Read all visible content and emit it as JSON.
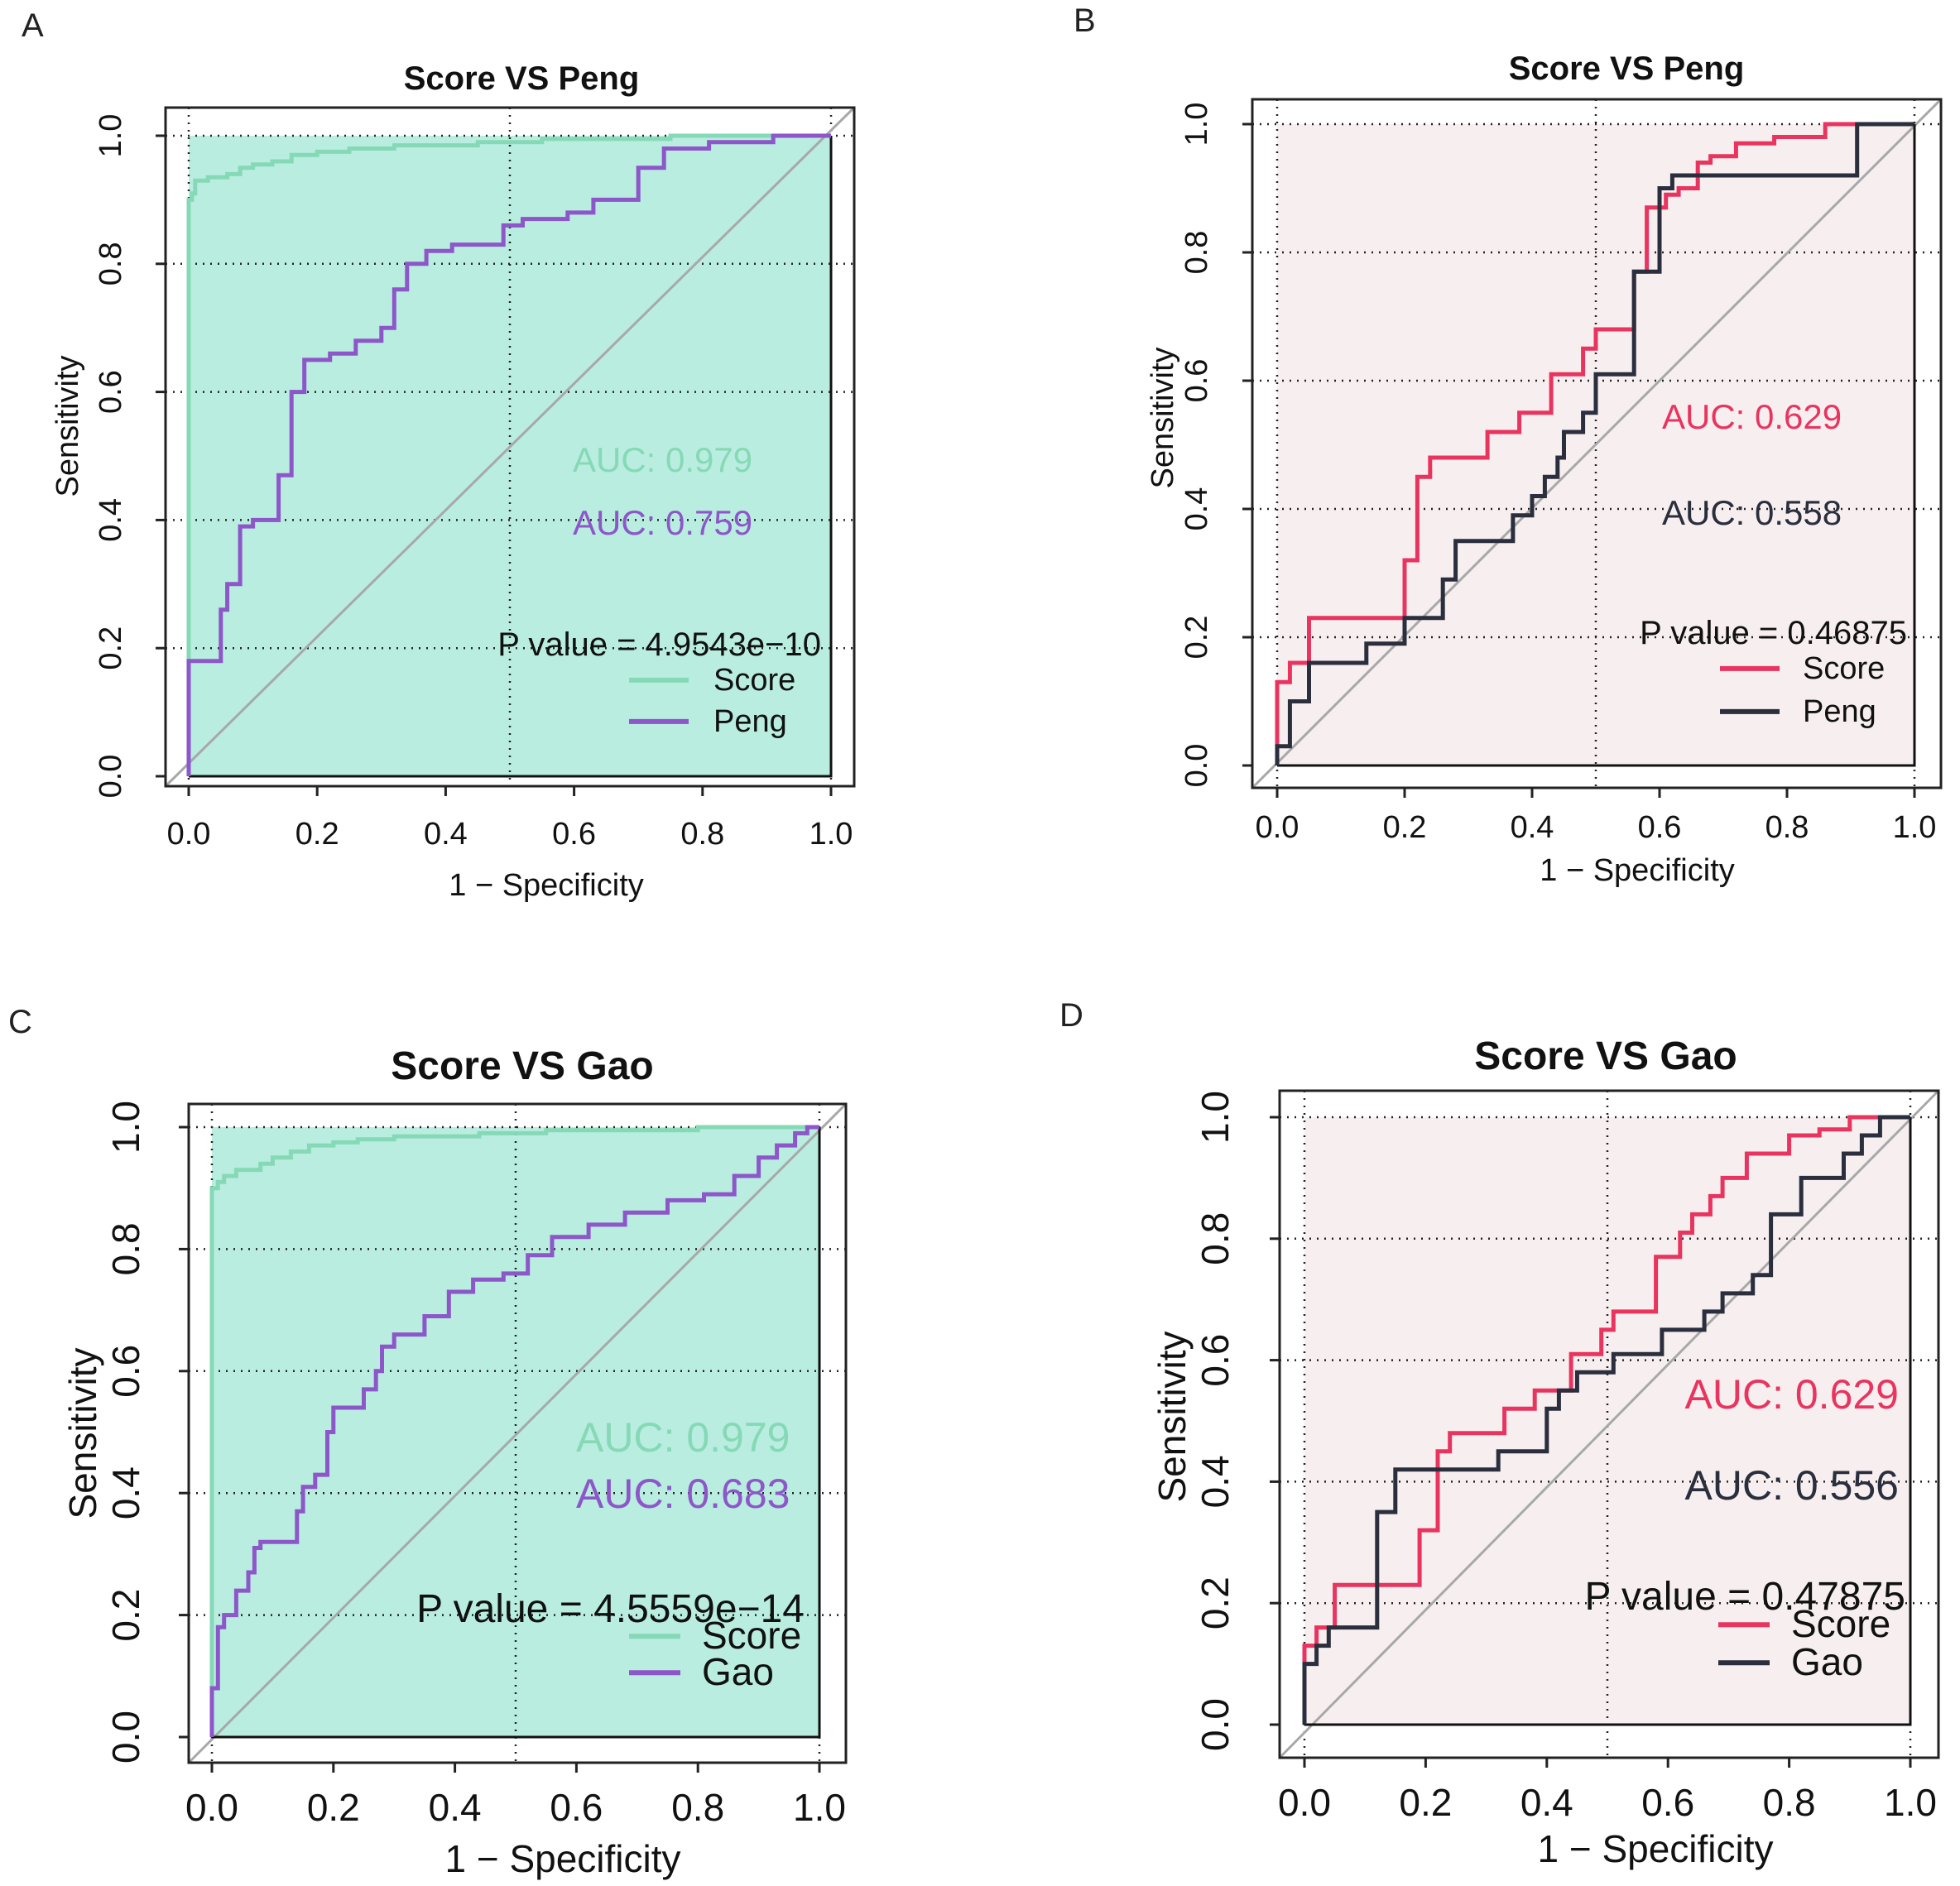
{
  "figure": {
    "colors": {
      "score_green": "#86d9b6",
      "fill_green": "#b9ede0",
      "peng_purple": "#8d56c9",
      "score_red": "#e8345f",
      "comparator_dark": "#2a2e3d",
      "fill_pink": "#f7efef",
      "diagonal": "#a8a8a8"
    }
  },
  "chart_data": [
    {
      "panel": "A",
      "type": "line",
      "subtype": "roc",
      "title": "Score VS Peng",
      "xlabel": "1 − Specificity",
      "ylabel": "Sensitivity",
      "xlim": [
        0,
        1
      ],
      "ylim": [
        0,
        1
      ],
      "xticks": [
        "0.0",
        "0.2",
        "0.4",
        "0.6",
        "0.8",
        "1.0"
      ],
      "yticks": [
        "0.0",
        "0.2",
        "0.4",
        "0.6",
        "0.8",
        "1.0"
      ],
      "grid": "dotted at 0, 0.5, 1 (x) and 0.2, 0.4, 0.6, 0.8, 1.0 (y)",
      "fill_color": "#b9ede0",
      "auc_labels": [
        "AUC: 0.979",
        "AUC: 0.759"
      ],
      "p_value_label": "P value = 4.9543e−10",
      "legend": [
        "Score",
        "Peng"
      ],
      "legend_position": "bottom-right",
      "series": [
        {
          "name": "Score",
          "color": "#86d9b6",
          "x": [
            0,
            0,
            0.005,
            0.005,
            0.01,
            0.01,
            0.03,
            0.03,
            0.06,
            0.06,
            0.08,
            0.08,
            0.1,
            0.1,
            0.13,
            0.13,
            0.16,
            0.16,
            0.2,
            0.2,
            0.25,
            0.25,
            0.32,
            0.32,
            0.45,
            0.45,
            0.55,
            0.55,
            0.75,
            0.75,
            1
          ],
          "y": [
            0,
            0.9,
            0.9,
            0.91,
            0.91,
            0.93,
            0.93,
            0.935,
            0.935,
            0.94,
            0.94,
            0.95,
            0.95,
            0.955,
            0.955,
            0.96,
            0.96,
            0.97,
            0.97,
            0.975,
            0.975,
            0.98,
            0.98,
            0.985,
            0.985,
            0.99,
            0.99,
            0.995,
            0.995,
            1,
            1
          ]
        },
        {
          "name": "Peng",
          "color": "#8d56c9",
          "x": [
            0,
            0,
            0.05,
            0.05,
            0.05,
            0.05,
            0.06,
            0.06,
            0.08,
            0.08,
            0.1,
            0.1,
            0.14,
            0.14,
            0.16,
            0.16,
            0.18,
            0.18,
            0.22,
            0.22,
            0.26,
            0.26,
            0.3,
            0.3,
            0.32,
            0.32,
            0.34,
            0.34,
            0.37,
            0.37,
            0.41,
            0.41,
            0.49,
            0.49,
            0.52,
            0.52,
            0.59,
            0.59,
            0.63,
            0.63,
            0.7,
            0.7,
            0.74,
            0.74,
            0.81,
            0.81,
            0.91,
            0.91,
            1
          ],
          "y": [
            0,
            0.18,
            0.18,
            0.19,
            0.19,
            0.26,
            0.26,
            0.3,
            0.3,
            0.39,
            0.39,
            0.4,
            0.4,
            0.47,
            0.47,
            0.6,
            0.6,
            0.65,
            0.65,
            0.66,
            0.66,
            0.68,
            0.68,
            0.7,
            0.7,
            0.76,
            0.76,
            0.8,
            0.8,
            0.82,
            0.82,
            0.83,
            0.83,
            0.86,
            0.86,
            0.87,
            0.87,
            0.88,
            0.88,
            0.9,
            0.9,
            0.95,
            0.95,
            0.98,
            0.98,
            0.99,
            0.99,
            1,
            1
          ]
        }
      ]
    },
    {
      "panel": "B",
      "type": "line",
      "subtype": "roc",
      "title": "Score VS Peng",
      "xlabel": "1 − Specificity",
      "ylabel": "Sensitivity",
      "xlim": [
        0,
        1
      ],
      "ylim": [
        0,
        1
      ],
      "xticks": [
        "0.0",
        "0.2",
        "0.4",
        "0.6",
        "0.8",
        "1.0"
      ],
      "yticks": [
        "0.0",
        "0.2",
        "0.4",
        "0.6",
        "0.8",
        "1.0"
      ],
      "grid": "dotted at 0, 0.5, 1 (x) and 0.2, 0.4, 0.6, 0.8, 1.0 (y)",
      "fill_color": "#f7efef",
      "auc_labels": [
        "AUC: 0.629",
        "AUC: 0.558"
      ],
      "p_value_label": "P value = 0.46875",
      "legend": [
        "Score",
        "Peng"
      ],
      "legend_position": "bottom-right",
      "series": [
        {
          "name": "Score",
          "color": "#e8345f",
          "x": [
            0,
            0,
            0.02,
            0.02,
            0.05,
            0.05,
            0.2,
            0.2,
            0.22,
            0.22,
            0.24,
            0.24,
            0.33,
            0.33,
            0.38,
            0.38,
            0.43,
            0.43,
            0.48,
            0.48,
            0.5,
            0.5,
            0.56,
            0.56,
            0.58,
            0.58,
            0.61,
            0.61,
            0.63,
            0.63,
            0.66,
            0.66,
            0.68,
            0.68,
            0.72,
            0.72,
            0.78,
            0.78,
            0.86,
            0.86,
            1
          ],
          "y": [
            0,
            0.13,
            0.13,
            0.16,
            0.16,
            0.23,
            0.23,
            0.32,
            0.32,
            0.45,
            0.45,
            0.48,
            0.48,
            0.52,
            0.52,
            0.55,
            0.55,
            0.61,
            0.61,
            0.65,
            0.65,
            0.68,
            0.68,
            0.77,
            0.77,
            0.87,
            0.87,
            0.89,
            0.89,
            0.9,
            0.9,
            0.94,
            0.94,
            0.95,
            0.95,
            0.97,
            0.97,
            0.98,
            0.98,
            1,
            1
          ]
        },
        {
          "name": "Peng",
          "color": "#2a2e3d",
          "x": [
            0,
            0,
            0.02,
            0.02,
            0.05,
            0.05,
            0.14,
            0.14,
            0.2,
            0.2,
            0.26,
            0.26,
            0.28,
            0.28,
            0.37,
            0.37,
            0.4,
            0.4,
            0.42,
            0.42,
            0.44,
            0.44,
            0.45,
            0.45,
            0.48,
            0.48,
            0.5,
            0.5,
            0.56,
            0.56,
            0.6,
            0.6,
            0.62,
            0.62,
            0.91,
            0.91,
            1
          ],
          "y": [
            0,
            0.03,
            0.03,
            0.1,
            0.1,
            0.16,
            0.16,
            0.19,
            0.19,
            0.23,
            0.23,
            0.29,
            0.29,
            0.35,
            0.35,
            0.39,
            0.39,
            0.42,
            0.42,
            0.45,
            0.45,
            0.48,
            0.48,
            0.52,
            0.52,
            0.55,
            0.55,
            0.61,
            0.61,
            0.77,
            0.77,
            0.9,
            0.9,
            0.92,
            0.92,
            1,
            1
          ]
        }
      ]
    },
    {
      "panel": "C",
      "type": "line",
      "subtype": "roc",
      "title": "Score VS Gao",
      "xlabel": "1 − Specificity",
      "ylabel": "Sensitivity",
      "xlim": [
        0,
        1
      ],
      "ylim": [
        0,
        1
      ],
      "xticks": [
        "0.0",
        "0.2",
        "0.4",
        "0.6",
        "0.8",
        "1.0"
      ],
      "yticks": [
        "0.0",
        "0.2",
        "0.4",
        "0.6",
        "0.8",
        "1.0"
      ],
      "grid": "dotted at 0, 0.5, 1 (x) and 0.2, 0.4, 0.6, 0.8, 1.0 (y)",
      "fill_color": "#b9ede0",
      "auc_labels": [
        "AUC: 0.979",
        "AUC: 0.683"
      ],
      "p_value_label": "P value = 4.5559e−14",
      "legend": [
        "Score",
        "Gao"
      ],
      "legend_position": "bottom-right",
      "series": [
        {
          "name": "Score",
          "color": "#86d9b6",
          "x": [
            0,
            0,
            0.01,
            0.01,
            0.02,
            0.02,
            0.04,
            0.04,
            0.08,
            0.08,
            0.1,
            0.1,
            0.13,
            0.13,
            0.16,
            0.16,
            0.2,
            0.2,
            0.24,
            0.24,
            0.3,
            0.3,
            0.44,
            0.44,
            0.55,
            0.55,
            0.8,
            0.8,
            1
          ],
          "y": [
            0,
            0.9,
            0.9,
            0.91,
            0.91,
            0.92,
            0.92,
            0.93,
            0.93,
            0.94,
            0.94,
            0.95,
            0.95,
            0.96,
            0.96,
            0.97,
            0.97,
            0.975,
            0.975,
            0.98,
            0.98,
            0.985,
            0.985,
            0.99,
            0.99,
            0.995,
            0.995,
            1,
            1
          ]
        },
        {
          "name": "Gao",
          "color": "#8d56c9",
          "x": [
            0,
            0,
            0.01,
            0.01,
            0.02,
            0.02,
            0.04,
            0.04,
            0.06,
            0.06,
            0.07,
            0.07,
            0.08,
            0.08,
            0.14,
            0.14,
            0.15,
            0.15,
            0.17,
            0.17,
            0.19,
            0.19,
            0.2,
            0.2,
            0.25,
            0.25,
            0.27,
            0.27,
            0.28,
            0.28,
            0.3,
            0.3,
            0.35,
            0.35,
            0.39,
            0.39,
            0.43,
            0.43,
            0.48,
            0.48,
            0.52,
            0.52,
            0.56,
            0.56,
            0.62,
            0.62,
            0.68,
            0.68,
            0.75,
            0.75,
            0.81,
            0.81,
            0.86,
            0.86,
            0.9,
            0.9,
            0.93,
            0.93,
            0.96,
            0.96,
            0.98,
            0.98,
            1
          ],
          "y": [
            0,
            0.08,
            0.08,
            0.18,
            0.18,
            0.2,
            0.2,
            0.24,
            0.24,
            0.27,
            0.27,
            0.31,
            0.31,
            0.32,
            0.32,
            0.37,
            0.37,
            0.41,
            0.41,
            0.43,
            0.43,
            0.5,
            0.5,
            0.54,
            0.54,
            0.57,
            0.57,
            0.6,
            0.6,
            0.64,
            0.64,
            0.66,
            0.66,
            0.69,
            0.69,
            0.73,
            0.73,
            0.75,
            0.75,
            0.76,
            0.76,
            0.79,
            0.79,
            0.82,
            0.82,
            0.84,
            0.84,
            0.86,
            0.86,
            0.88,
            0.88,
            0.89,
            0.89,
            0.92,
            0.92,
            0.95,
            0.95,
            0.97,
            0.97,
            0.99,
            0.99,
            1,
            1
          ]
        }
      ]
    },
    {
      "panel": "D",
      "type": "line",
      "subtype": "roc",
      "title": "Score VS Gao",
      "xlabel": "1 − Specificity",
      "ylabel": "Sensitivity",
      "xlim": [
        0,
        1
      ],
      "ylim": [
        0,
        1
      ],
      "xticks": [
        "0.0",
        "0.2",
        "0.4",
        "0.6",
        "0.8",
        "1.0"
      ],
      "yticks": [
        "0.0",
        "0.2",
        "0.4",
        "0.6",
        "0.8",
        "1.0"
      ],
      "grid": "dotted at 0, 0.5, 1 (x) and 0.2, 0.4, 0.6, 0.8, 1.0 (y)",
      "fill_color": "#f7efef",
      "auc_labels": [
        "AUC: 0.629",
        "AUC: 0.556"
      ],
      "p_value_label": "P value = 0.47875",
      "legend": [
        "Score",
        "Gao"
      ],
      "legend_position": "bottom-right",
      "series": [
        {
          "name": "Score",
          "color": "#e8345f",
          "x": [
            0,
            0,
            0.02,
            0.02,
            0.05,
            0.05,
            0.19,
            0.19,
            0.22,
            0.22,
            0.24,
            0.24,
            0.33,
            0.33,
            0.38,
            0.38,
            0.44,
            0.44,
            0.49,
            0.49,
            0.51,
            0.51,
            0.58,
            0.58,
            0.62,
            0.62,
            0.64,
            0.64,
            0.67,
            0.67,
            0.69,
            0.69,
            0.73,
            0.73,
            0.8,
            0.8,
            0.85,
            0.85,
            0.9,
            0.9,
            1
          ],
          "y": [
            0,
            0.13,
            0.13,
            0.16,
            0.16,
            0.23,
            0.23,
            0.32,
            0.32,
            0.45,
            0.45,
            0.48,
            0.48,
            0.52,
            0.52,
            0.55,
            0.55,
            0.61,
            0.61,
            0.65,
            0.65,
            0.68,
            0.68,
            0.77,
            0.77,
            0.81,
            0.81,
            0.84,
            0.84,
            0.87,
            0.87,
            0.9,
            0.9,
            0.94,
            0.94,
            0.97,
            0.97,
            0.98,
            0.98,
            1,
            1
          ]
        },
        {
          "name": "Gao",
          "color": "#2a2e3d",
          "x": [
            0,
            0,
            0.02,
            0.02,
            0.04,
            0.04,
            0.06,
            0.06,
            0.12,
            0.12,
            0.13,
            0.13,
            0.15,
            0.15,
            0.26,
            0.26,
            0.29,
            0.29,
            0.32,
            0.32,
            0.4,
            0.4,
            0.42,
            0.42,
            0.44,
            0.44,
            0.45,
            0.45,
            0.51,
            0.51,
            0.59,
            0.59,
            0.66,
            0.66,
            0.69,
            0.69,
            0.74,
            0.74,
            0.77,
            0.77,
            0.82,
            0.82,
            0.89,
            0.89,
            0.92,
            0.92,
            0.95,
            0.95,
            1
          ],
          "y": [
            0,
            0.1,
            0.1,
            0.13,
            0.13,
            0.16,
            0.16,
            0.16,
            0.16,
            0.35,
            0.35,
            0.35,
            0.35,
            0.42,
            0.42,
            0.42,
            0.42,
            0.42,
            0.42,
            0.45,
            0.45,
            0.52,
            0.52,
            0.55,
            0.55,
            0.55,
            0.55,
            0.58,
            0.58,
            0.61,
            0.61,
            0.65,
            0.65,
            0.68,
            0.68,
            0.71,
            0.71,
            0.74,
            0.74,
            0.84,
            0.84,
            0.9,
            0.9,
            0.94,
            0.94,
            0.97,
            0.97,
            1,
            1
          ]
        }
      ]
    }
  ]
}
